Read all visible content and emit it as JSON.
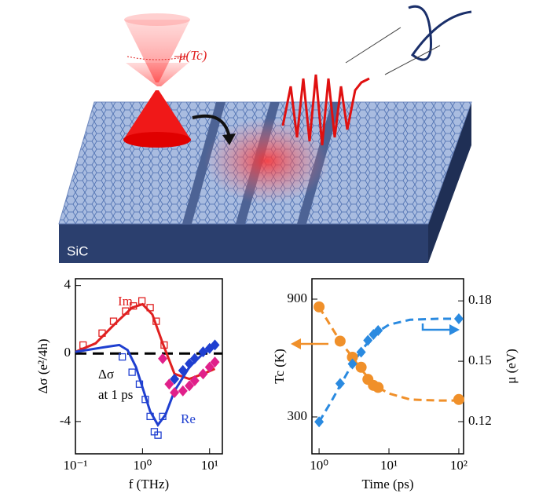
{
  "diagram": {
    "labels": [
      "μ(Tc)",
      "SiC"
    ]
  },
  "chart_data": [
    {
      "type": "scatter",
      "xlabel": "f (THz)",
      "ylabel": "Δσ (e²/4h)",
      "xscale": "log",
      "xlim": [
        0.1,
        15.5
      ],
      "ylim": [
        -5.9,
        4.4
      ],
      "xticks": [
        {
          "value": 0.1,
          "label": "10⁻¹"
        },
        {
          "value": 1,
          "label": "10⁰"
        },
        {
          "value": 10,
          "label": "10¹"
        }
      ],
      "yticks": [
        4,
        0,
        -4
      ],
      "reference_line": 0,
      "annotations": [
        {
          "text": "Im",
          "color": "#e02020"
        },
        {
          "text": "Re",
          "color": "#1f3fd0"
        },
        {
          "text": "Δσ",
          "color": "#000000"
        },
        {
          "text": "at 1 ps",
          "color": "#000000"
        }
      ],
      "series": [
        {
          "style": "open-square",
          "color": "#e02020",
          "x": [
            0.13,
            0.25,
            0.37,
            0.56,
            0.73,
            0.98,
            1.3,
            1.6,
            2.1
          ],
          "values": [
            0.5,
            1.2,
            1.9,
            2.5,
            2.8,
            3.1,
            2.7,
            1.9,
            0.5
          ]
        },
        {
          "style": "open-square",
          "color": "#1f3fd0",
          "x": [
            0.5,
            0.7,
            0.9,
            1.1,
            1.3,
            1.5,
            1.7,
            2.0
          ],
          "values": [
            -0.2,
            -1.1,
            -1.8,
            -2.7,
            -3.7,
            -4.6,
            -4.8,
            -3.7
          ]
        },
        {
          "style": "line",
          "color": "#e02020",
          "x": [
            0.1,
            0.2,
            0.4,
            0.7,
            1,
            1.4,
            2,
            3,
            5,
            8,
            12
          ],
          "values": [
            0.1,
            0.6,
            1.8,
            2.7,
            2.9,
            2.3,
            0.6,
            -1.2,
            -1.5,
            -1.2,
            -0.9
          ]
        },
        {
          "style": "line",
          "color": "#1f3fd0",
          "x": [
            0.1,
            0.3,
            0.45,
            0.6,
            0.8,
            1,
            1.3,
            1.7,
            2.2,
            3,
            5,
            8,
            12
          ],
          "values": [
            0.1,
            0.4,
            0.5,
            0.2,
            -0.8,
            -2.0,
            -3.4,
            -4.2,
            -3.6,
            -2.2,
            -0.8,
            0,
            0.4
          ]
        },
        {
          "style": "filled-diamond",
          "color": "#e0208a",
          "x": [
            2,
            2.5,
            3,
            4,
            5,
            6,
            8,
            10,
            12
          ],
          "values": [
            -0.3,
            -1.8,
            -2.3,
            -2.2,
            -1.9,
            -1.6,
            -1.2,
            -0.8,
            -0.5
          ]
        },
        {
          "style": "filled-diamond",
          "color": "#1f3fd0",
          "x": [
            3,
            4,
            5,
            6,
            8,
            10,
            12
          ],
          "values": [
            -1.5,
            -1.0,
            -0.6,
            -0.3,
            0.1,
            0.3,
            0.5
          ]
        }
      ]
    },
    {
      "type": "scatter",
      "xlabel": "Time (ps)",
      "ylabel": "Tc (K)",
      "y2label": "μ (eV)",
      "xscale": "log",
      "xlim": [
        0.79,
        117
      ],
      "ylim": [
        112,
        1004
      ],
      "y2lim": [
        0.104,
        0.191
      ],
      "xticks": [
        {
          "value": 1,
          "label": "10⁰"
        },
        {
          "value": 10,
          "label": "10¹"
        },
        {
          "value": 100,
          "label": "10²"
        }
      ],
      "yticks": [
        300,
        900
      ],
      "y2ticks": [
        0.12,
        0.15,
        0.18
      ],
      "series": [
        {
          "style": "dashed",
          "color": "#f0902a",
          "axis": "y2",
          "x": [
            1,
            1.5,
            2,
            3,
            4,
            5,
            7,
            10,
            20,
            50,
            100
          ],
          "values": [
            0.177,
            0.167,
            0.16,
            0.152,
            0.146,
            0.142,
            0.137,
            0.134,
            0.131,
            0.1305,
            0.1305
          ]
        },
        {
          "style": "dashed",
          "color": "#2a8ae0",
          "x": [
            1,
            1.5,
            2,
            3,
            4,
            5,
            7,
            10,
            20,
            50,
            100
          ],
          "values": [
            275,
            380,
            460,
            570,
            635,
            680,
            735,
            770,
            795,
            800,
            800
          ]
        },
        {
          "style": "filled-circle",
          "color": "#f0902a",
          "axis": "y2",
          "x": [
            1,
            2,
            3,
            4,
            5,
            6,
            7,
            100
          ],
          "values": [
            0.177,
            0.16,
            0.152,
            0.147,
            0.141,
            0.138,
            0.137,
            0.131
          ]
        },
        {
          "style": "filled-diamond",
          "color": "#2a8ae0",
          "x": [
            1,
            2,
            3,
            4,
            5,
            6,
            7,
            100
          ],
          "values": [
            275,
            470,
            570,
            630,
            690,
            720,
            740,
            800
          ]
        }
      ]
    }
  ]
}
